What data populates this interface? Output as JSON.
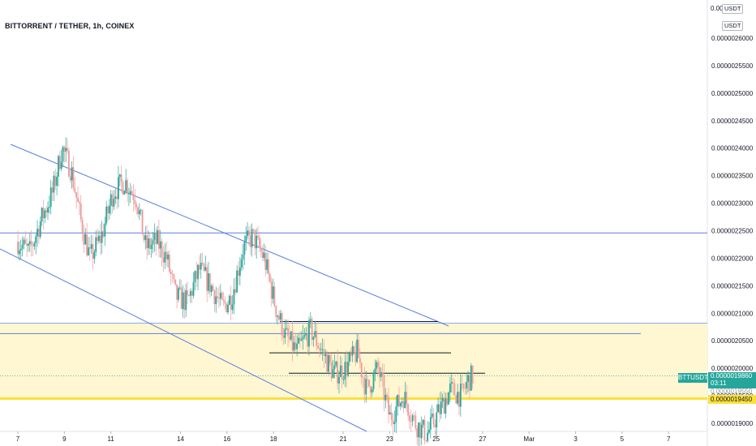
{
  "title": "BITTORRENT / TETHER, 1h, COINEX",
  "currency_badges": [
    "USDT",
    "USDT"
  ],
  "axis_top_partial": "0.00",
  "price_axis_labels": [
    "0.0000026000",
    "0.0000025500",
    "0.0000025000",
    "0.0000024500",
    "0.0000024000",
    "0.0000023500",
    "0.0000023000",
    "0.0000022500",
    "0.0000022000",
    "0.0000021500",
    "0.0000021000",
    "0.0000020500",
    "0.0000020000",
    "0.0000019500",
    "0.0000019000"
  ],
  "time_axis_labels": [
    "7",
    "9",
    "11",
    "14",
    "16",
    "18",
    "21",
    "23",
    "25",
    "27",
    "Mar",
    "3",
    "5",
    "7"
  ],
  "symbol_label": "BTTUSDT",
  "last_price": "0.0000019860",
  "countdown": "03:11",
  "support_price": "0.0000019450",
  "obscured_axis_label": "0.0000019550",
  "colors": {
    "up": "#26a69a",
    "down": "#ef9a9a",
    "trendline": "#5b7fe0",
    "zone_fill": "#fff7d1",
    "support": "#fbe03a",
    "black_line": "#131722"
  },
  "chart_data": {
    "type": "candlestick",
    "title": "BITTORRENT / TETHER, 1h, COINEX",
    "x_ticks": [
      "7",
      "9",
      "11",
      "14",
      "16",
      "18",
      "21",
      "23",
      "25",
      "27",
      "Mar",
      "3",
      "5",
      "7"
    ],
    "y_ticks": [
      2.6e-06,
      2.55e-06,
      2.5e-06,
      2.45e-06,
      2.4e-06,
      2.35e-06,
      2.3e-06,
      2.25e-06,
      2.2e-06,
      2.15e-06,
      2.1e-06,
      2.05e-06,
      2e-06,
      1.95e-06,
      1.9e-06
    ],
    "ylim": [
      1.88e-06,
      2.63e-06
    ],
    "last_price": 1.986e-06,
    "support_level": 1.945e-06,
    "zone": [
      1.945e-06,
      2.082e-06
    ],
    "horizontal_lines": [
      2.246e-06,
      2.063e-06
    ],
    "short_lines": [
      2.085e-06,
      2.028e-06,
      1.991e-06
    ],
    "price_path": [
      [
        0,
        2.23e-06
      ],
      [
        0.5,
        2.21e-06
      ],
      [
        1,
        2.27e-06
      ],
      [
        1.5,
        2.32e-06
      ],
      [
        1.9,
        2.4e-06
      ],
      [
        2.3,
        2.36e-06
      ],
      [
        2.7,
        2.27e-06
      ],
      [
        3.1,
        2.2e-06
      ],
      [
        3.6,
        2.24e-06
      ],
      [
        4.1,
        2.32e-06
      ],
      [
        4.6,
        2.34e-06
      ],
      [
        5.1,
        2.31e-06
      ],
      [
        5.5,
        2.22e-06
      ],
      [
        6,
        2.23e-06
      ],
      [
        6.4,
        2.2e-06
      ],
      [
        6.8,
        2.13e-06
      ],
      [
        7.3,
        2.12e-06
      ],
      [
        7.8,
        2.18e-06
      ],
      [
        8.3,
        2.15e-06
      ],
      [
        8.8,
        2.11e-06
      ],
      [
        9.2,
        2.13e-06
      ],
      [
        9.7,
        2.22e-06
      ],
      [
        10.1,
        2.24e-06
      ],
      [
        10.6,
        2.2e-06
      ],
      [
        11.1,
        2.11e-06
      ],
      [
        11.5,
        2.06e-06
      ],
      [
        12,
        2.03e-06
      ],
      [
        12.6,
        2.07e-06
      ],
      [
        13.1,
        2.03e-06
      ],
      [
        13.6,
        1.99e-06
      ],
      [
        14.1,
        2e-06
      ],
      [
        14.6,
        2.03e-06
      ],
      [
        15,
        1.96e-06
      ],
      [
        15.5,
        2e-06
      ],
      [
        16,
        1.91e-06
      ],
      [
        16.6,
        1.95e-06
      ],
      [
        17.1,
        1.9e-06
      ],
      [
        17.6,
        1.88e-06
      ],
      [
        18.1,
        1.92e-06
      ],
      [
        18.6,
        1.96e-06
      ],
      [
        19.1,
        1.95e-06
      ],
      [
        19.4,
        1.98e-06
      ],
      [
        19.6,
        1.986e-06
      ]
    ]
  }
}
